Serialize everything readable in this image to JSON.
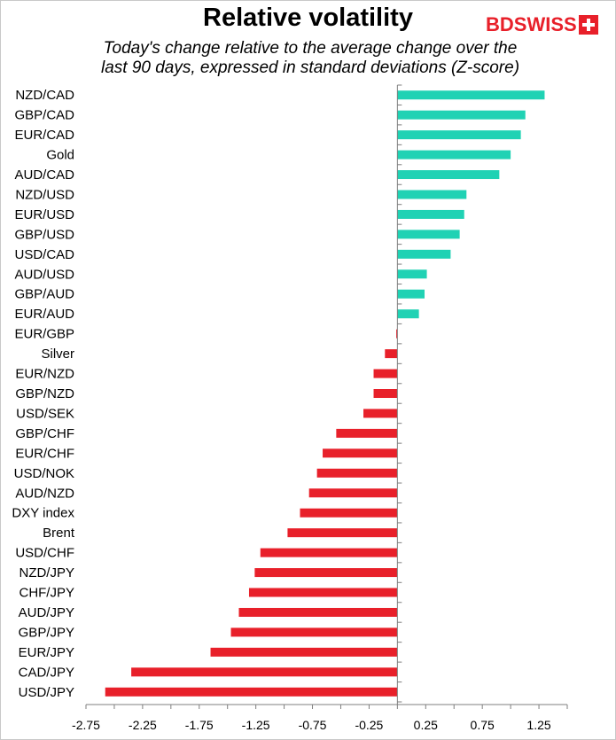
{
  "header": {
    "title": "Relative volatility",
    "subtitle_line1": "Today's change relative to the average change over the",
    "subtitle_line2": "last 90 days, expressed in standard deviations (Z-score)",
    "logo_left": "BD",
    "logo_right": "SWISS"
  },
  "colors": {
    "positive": "#20d2b4",
    "negative": "#e8202a",
    "axis": "#7f7f7f"
  },
  "chart_data": {
    "type": "bar",
    "orientation": "horizontal",
    "title": "Relative volatility",
    "subtitle": "Today's change relative to the average change over the last 90 days, expressed in standard deviations (Z-score)",
    "categories": [
      "NZD/CAD",
      "GBP/CAD",
      "EUR/CAD",
      "Gold",
      "AUD/CAD",
      "NZD/USD",
      "EUR/USD",
      "GBP/USD",
      "USD/CAD",
      "AUD/USD",
      "GBP/AUD",
      "EUR/AUD",
      "EUR/GBP",
      "Silver",
      "EUR/NZD",
      "GBP/NZD",
      "USD/SEK",
      "GBP/CHF",
      "EUR/CHF",
      "USD/NOK",
      "AUD/NZD",
      "DXY index",
      "Brent",
      "USD/CHF",
      "NZD/JPY",
      "CHF/JPY",
      "AUD/JPY",
      "GBP/JPY",
      "EUR/JPY",
      "CAD/JPY",
      "USD/JPY"
    ],
    "values": [
      1.3,
      1.13,
      1.09,
      1.0,
      0.9,
      0.61,
      0.59,
      0.55,
      0.47,
      0.26,
      0.24,
      0.19,
      -0.01,
      -0.11,
      -0.21,
      -0.21,
      -0.3,
      -0.54,
      -0.66,
      -0.71,
      -0.78,
      -0.86,
      -0.97,
      -1.21,
      -1.26,
      -1.31,
      -1.4,
      -1.47,
      -1.65,
      -2.35,
      -2.58
    ],
    "xlim": [
      -2.75,
      1.5
    ],
    "xticks": [
      "-2.75",
      "-2.25",
      "-1.75",
      "-1.25",
      "-0.75",
      "-0.25",
      "0.25",
      "0.75",
      "1.25"
    ],
    "xlabel": "",
    "ylabel": "",
    "grid": false,
    "legend": "none"
  }
}
